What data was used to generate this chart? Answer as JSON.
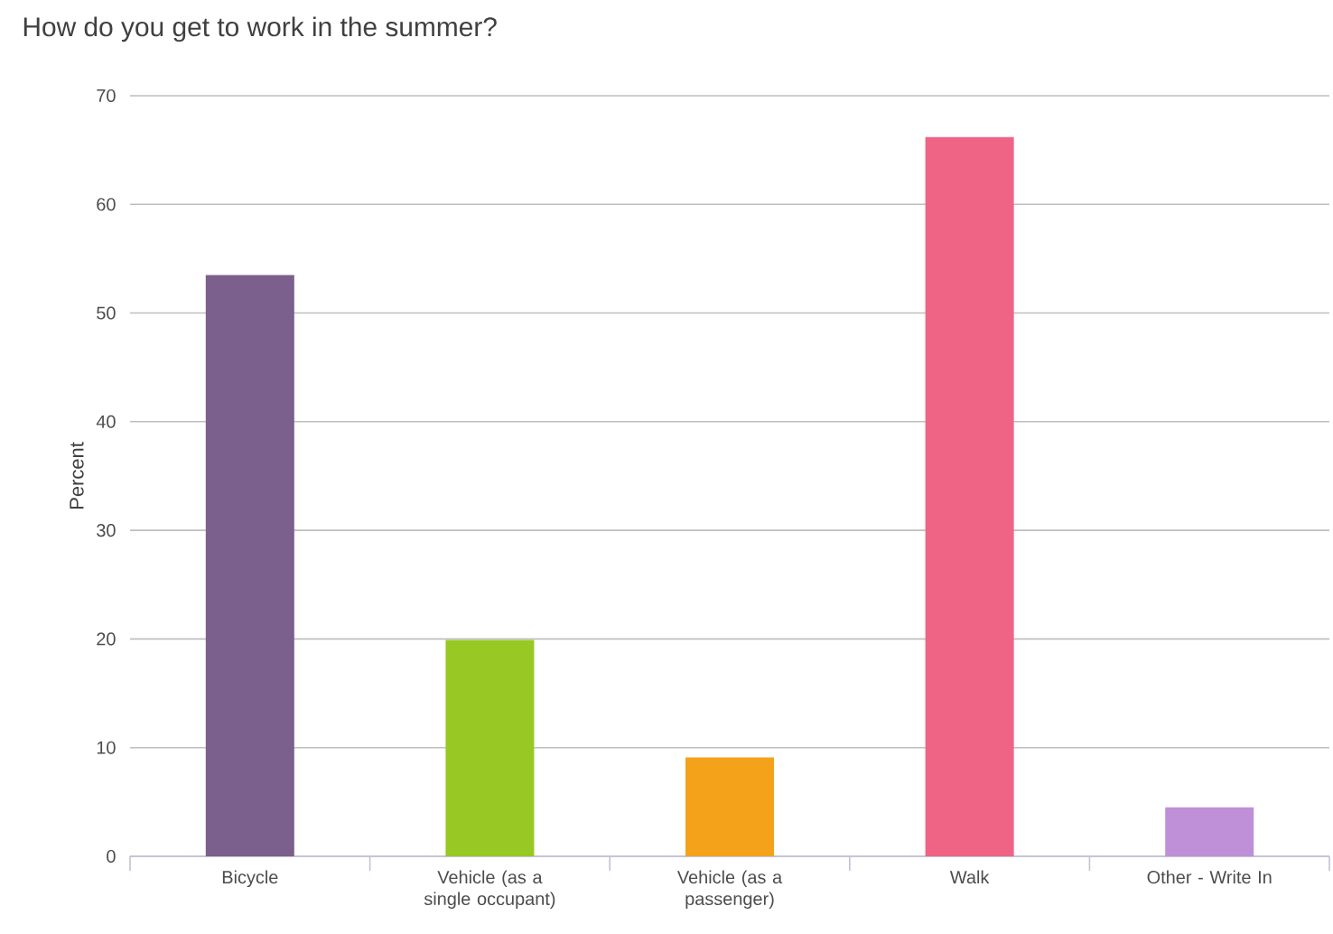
{
  "chart_data": {
    "type": "bar",
    "title": "How do you get to work in the summer?",
    "ylabel": "Percent",
    "categories": [
      "Bicycle",
      "Vehicle (as a single occupant)",
      "Vehicle (as a passenger)",
      "Walk",
      "Other - Write In"
    ],
    "values": [
      53.5,
      19.9,
      9.1,
      66.2,
      4.5
    ],
    "colors": [
      "#7b5f8c",
      "#97c824",
      "#f4a21a",
      "#ef6384",
      "#bf8fd8"
    ],
    "ylim": [
      0,
      70
    ],
    "yticks": [
      0,
      10,
      20,
      30,
      40,
      50,
      60,
      70
    ],
    "grid": "y"
  }
}
